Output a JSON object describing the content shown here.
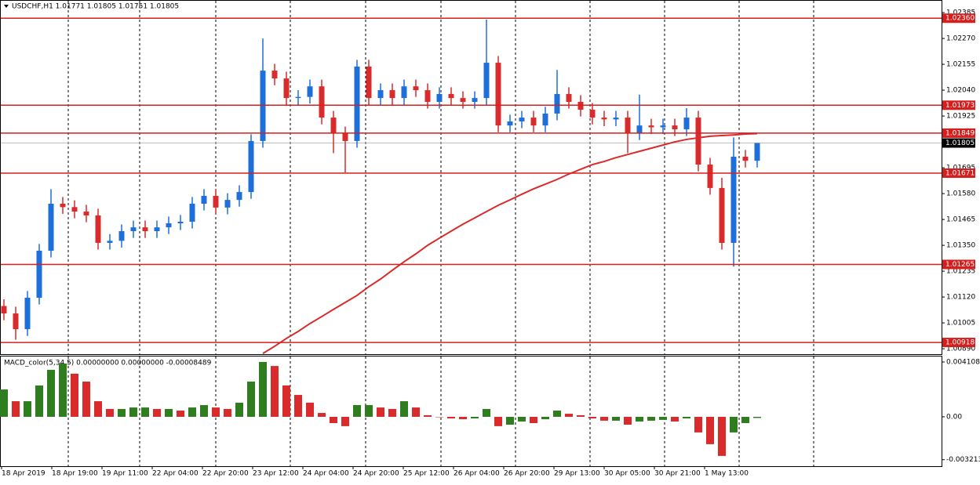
{
  "chart_data": [
    {
      "type": "candlestick",
      "title": "USDCHF,H1  1.01771 1.01805 1.01751 1.01805",
      "ylim": [
        1.00866,
        1.02441
      ],
      "yticks": [
        {
          "value": 1.02385,
          "label": "1.02385"
        },
        {
          "value": 1.0227,
          "label": "1.02270"
        },
        {
          "value": 1.02155,
          "label": "1.02155"
        },
        {
          "value": 1.0204,
          "label": "1.02040"
        },
        {
          "value": 1.01925,
          "label": "1.01925"
        },
        {
          "value": 1.01695,
          "label": "1.01695"
        },
        {
          "value": 1.0158,
          "label": "1.01580"
        },
        {
          "value": 1.01465,
          "label": "1.01465"
        },
        {
          "value": 1.0135,
          "label": "1.01350"
        },
        {
          "value": 1.01235,
          "label": "1.01235"
        },
        {
          "value": 1.0112,
          "label": "1.01120"
        },
        {
          "value": 1.01005,
          "label": "1.01005"
        },
        {
          "value": 1.0089,
          "label": "1.00890"
        }
      ],
      "levels": [
        {
          "value": 1.0236,
          "label": "1.02360"
        },
        {
          "value": 1.01973,
          "label": "1.01973"
        },
        {
          "value": 1.01849,
          "label": "1.01849"
        },
        {
          "value": 1.01671,
          "label": "1.01671"
        },
        {
          "value": 1.01265,
          "label": "1.01265"
        },
        {
          "value": 1.00918,
          "label": "1.00918"
        }
      ],
      "current_price": {
        "value": 1.01805,
        "label": "1.01805"
      },
      "x_labels": [
        "18 Apr 2019",
        "18 Apr 19:00",
        "19 Apr 11:00",
        "22 Apr 04:00",
        "22 Apr 20:00",
        "23 Apr 12:00",
        "24 Apr 04:00",
        "24 Apr 20:00",
        "25 Apr 12:00",
        "26 Apr 04:00",
        "26 Apr 20:00",
        "29 Apr 13:00",
        "30 Apr 05:00",
        "30 Apr 21:00",
        "1 May 13:00"
      ],
      "up_color": "#1e6fd9",
      "down_color": "#d92b2b",
      "ma_color": "#d92b2b",
      "level_color": "#d41f1f",
      "ohlc": [
        [
          1.0108,
          1.0111,
          1.01017,
          1.01047
        ],
        [
          1.01047,
          1.01077,
          1.0093,
          1.00977
        ],
        [
          1.00977,
          1.01147,
          1.00947,
          1.01117
        ],
        [
          1.01117,
          1.01356,
          1.01087,
          1.01326
        ],
        [
          1.01326,
          1.016,
          1.01296,
          1.01535
        ],
        [
          1.01535,
          1.01565,
          1.0149,
          1.0152
        ],
        [
          1.0152,
          1.0155,
          1.0147,
          1.015
        ],
        [
          1.015,
          1.0153,
          1.01453,
          1.01483
        ],
        [
          1.01483,
          1.01513,
          1.01331,
          1.01361
        ],
        [
          1.01361,
          1.014,
          1.01331,
          1.0137
        ],
        [
          1.0137,
          1.01443,
          1.0134,
          1.01413
        ],
        [
          1.01413,
          1.0146,
          1.01383,
          1.0143
        ],
        [
          1.0143,
          1.0146,
          1.01383,
          1.01413
        ],
        [
          1.01413,
          1.0146,
          1.01383,
          1.0143
        ],
        [
          1.0143,
          1.01478,
          1.014,
          1.01448
        ],
        [
          1.01448,
          1.01485,
          1.01418,
          1.01455
        ],
        [
          1.01455,
          1.01565,
          1.01425,
          1.01535
        ],
        [
          1.01535,
          1.016,
          1.01505,
          1.0157
        ],
        [
          1.0157,
          1.016,
          1.01488,
          1.01518
        ],
        [
          1.01518,
          1.01582,
          1.01488,
          1.01552
        ],
        [
          1.01552,
          1.01617,
          1.01522,
          1.01587
        ],
        [
          1.01587,
          1.01844,
          1.01557,
          1.01814
        ],
        [
          1.01814,
          1.0227,
          1.01784,
          1.02127
        ],
        [
          1.02127,
          1.02157,
          1.02062,
          1.02092
        ],
        [
          1.02092,
          1.02122,
          1.01975,
          1.02005
        ],
        [
          1.02005,
          1.0204,
          1.01975,
          1.0201
        ],
        [
          1.0201,
          1.02087,
          1.0198,
          1.02057
        ],
        [
          1.02057,
          1.02087,
          1.01888,
          1.01918
        ],
        [
          1.01918,
          1.01948,
          1.0176,
          1.01848
        ],
        [
          1.01848,
          1.01878,
          1.01674,
          1.01814
        ],
        [
          1.01814,
          1.02175,
          1.01784,
          1.02145
        ],
        [
          1.02145,
          1.02175,
          1.01975,
          1.02005
        ],
        [
          1.02005,
          1.0207,
          1.01975,
          1.0204
        ],
        [
          1.0204,
          1.0207,
          1.01975,
          1.02005
        ],
        [
          1.02005,
          1.02087,
          1.01975,
          1.02057
        ],
        [
          1.02057,
          1.02087,
          1.0201,
          1.0204
        ],
        [
          1.0204,
          1.0207,
          1.01958,
          1.01988
        ],
        [
          1.01988,
          1.02053,
          1.01958,
          1.02023
        ],
        [
          1.02023,
          1.02053,
          1.01975,
          1.02005
        ],
        [
          1.02005,
          1.02035,
          1.01958,
          1.01988
        ],
        [
          1.01988,
          1.02035,
          1.01958,
          1.02005
        ],
        [
          1.02005,
          1.02354,
          1.01975,
          1.02162
        ],
        [
          1.02162,
          1.02192,
          1.01853,
          1.01883
        ],
        [
          1.01883,
          1.01931,
          1.01853,
          1.01901
        ],
        [
          1.01901,
          1.01948,
          1.01871,
          1.01918
        ],
        [
          1.01918,
          1.01948,
          1.01853,
          1.01883
        ],
        [
          1.01883,
          1.01966,
          1.01853,
          1.01936
        ],
        [
          1.01936,
          1.0213,
          1.01906,
          1.02023
        ],
        [
          1.02023,
          1.02053,
          1.01958,
          1.01988
        ],
        [
          1.01988,
          1.02018,
          1.01923,
          1.01953
        ],
        [
          1.01953,
          1.01983,
          1.01888,
          1.01918
        ],
        [
          1.01918,
          1.01948,
          1.0188,
          1.0191
        ],
        [
          1.0191,
          1.01948,
          1.0188,
          1.01918
        ],
        [
          1.01918,
          1.01948,
          1.0176,
          1.01848
        ],
        [
          1.01848,
          1.0202,
          1.01818,
          1.01883
        ],
        [
          1.01883,
          1.01913,
          1.01845,
          1.01875
        ],
        [
          1.01875,
          1.01913,
          1.01845,
          1.01883
        ],
        [
          1.01883,
          1.01913,
          1.01836,
          1.01866
        ],
        [
          1.01866,
          1.0196,
          1.01836,
          1.01918
        ],
        [
          1.01918,
          1.01948,
          1.01679,
          1.01709
        ],
        [
          1.01709,
          1.01739,
          1.01575,
          1.01605
        ],
        [
          1.01605,
          1.0165,
          1.01331,
          1.01361
        ],
        [
          1.01361,
          1.0183,
          1.01255,
          1.01744
        ],
        [
          1.01744,
          1.01774,
          1.01696,
          1.01726
        ],
        [
          1.01726,
          1.01805,
          1.01696,
          1.01805
        ]
      ],
      "ma": [
        null,
        null,
        null,
        null,
        null,
        null,
        null,
        null,
        null,
        null,
        null,
        null,
        null,
        null,
        null,
        null,
        null,
        null,
        null,
        null,
        null,
        null,
        1.00869,
        1.00901,
        1.00936,
        1.00967,
        1.01002,
        1.01033,
        1.01065,
        1.01096,
        1.01127,
        1.01166,
        1.012,
        1.01239,
        1.01277,
        1.01312,
        1.0135,
        1.01382,
        1.01413,
        1.01444,
        1.01472,
        1.015,
        1.01528,
        1.01552,
        1.01577,
        1.01601,
        1.01622,
        1.01643,
        1.01667,
        1.01688,
        1.01709,
        1.01723,
        1.0174,
        1.01754,
        1.01768,
        1.01782,
        1.01796,
        1.0181,
        1.01821,
        1.01828,
        1.01835,
        1.01838,
        1.01841,
        1.01845,
        1.01847
      ]
    },
    {
      "type": "bar",
      "title": "MACD_color(5,34,5) 0.00000000 0.00000000 -0.00008489",
      "ylim": [
        -0.0037,
        0.00452
      ],
      "yticks": [
        0.0041081,
        {
          "value": 0,
          "label": "0.00"
        },
        -0.003213
      ],
      "up_color": "#2e7d1e",
      "down_color": "#d92b2b",
      "values": [
        0.00205,
        0.00117,
        0.00117,
        0.00235,
        0.00352,
        0.00399,
        0.00323,
        0.00264,
        0.00117,
        0.00059,
        0.00059,
        0.0007,
        0.0007,
        0.00059,
        0.00059,
        0.00047,
        0.0007,
        0.00088,
        0.0007,
        0.00059,
        0.00106,
        0.00264,
        0.00411,
        0.00381,
        0.00235,
        0.00164,
        0.00106,
        0.00029,
        -0.00047,
        -0.0007,
        0.00088,
        0.00088,
        0.0007,
        0.00059,
        0.00117,
        0.0007,
        0.00012,
        0,
        -0.00012,
        -0.00018,
        -0.00012,
        0.00059,
        -0.0007,
        -0.00059,
        -0.00035,
        -0.00047,
        -0.00018,
        0.00047,
        0.00023,
        0.00012,
        -0.00012,
        -0.00029,
        -0.00029,
        -0.00059,
        -0.00035,
        -0.00029,
        -0.00023,
        -0.00035,
        -0.00012,
        -0.00117,
        -0.00205,
        -0.00293,
        -0.00117,
        -0.00047,
        -8.489e-05
      ]
    }
  ]
}
